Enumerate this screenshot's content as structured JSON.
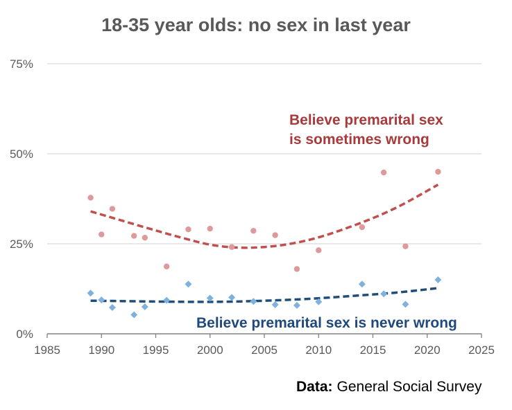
{
  "colors": {
    "sometimes_points": "#dd9a9a",
    "sometimes_trend": "#c0504d",
    "sometimes_label": "#a83a3c",
    "never_points": "#7fb1dd",
    "never_trend": "#1f4e79",
    "never_label": "#1f497d",
    "grid": "#d9d9d9",
    "axis": "#808080",
    "text": "#595959"
  },
  "chart_data": {
    "type": "scatter",
    "title": "18-35 year olds: no sex in last year",
    "xlabel": "",
    "ylabel": "",
    "xlim": [
      1985,
      2025
    ],
    "ylim": [
      0,
      75
    ],
    "x_ticks": [
      1985,
      1990,
      1995,
      2000,
      2005,
      2010,
      2015,
      2020,
      2025
    ],
    "x_tick_labels": [
      "1985",
      "1990",
      "1995",
      "2000",
      "2005",
      "2010",
      "2015",
      "2020",
      "2025"
    ],
    "y_ticks": [
      0,
      25,
      50,
      75
    ],
    "y_tick_labels": [
      "0%",
      "25%",
      "50%",
      "75%"
    ],
    "grid": "horizontal",
    "series": [
      {
        "name": "Believe premarital sex is sometimes wrong",
        "label_lines": [
          "Believe premarital sex",
          "is sometimes wrong"
        ],
        "marker": "circle",
        "x": [
          1989,
          1990,
          1991,
          1993,
          1994,
          1996,
          1998,
          2000,
          2002,
          2004,
          2006,
          2008,
          2010,
          2014,
          2016,
          2018,
          2021
        ],
        "y": [
          37.8,
          27.6,
          34.7,
          27.2,
          26.7,
          18.7,
          29.0,
          29.2,
          24.1,
          28.6,
          27.4,
          18.0,
          23.2,
          29.6,
          44.8,
          24.3,
          45.0
        ],
        "trend": {
          "type": "polynomial",
          "order": 2,
          "x_range": [
            1989,
            2021
          ],
          "points": [
            [
              1989,
              34.0
            ],
            [
              1997,
              27.0
            ],
            [
              2001,
              24.3
            ],
            [
              2005,
              24.1
            ],
            [
              2009,
              26.0
            ],
            [
              2013,
              29.8
            ],
            [
              2017,
              34.8
            ],
            [
              2021,
              41.4
            ]
          ]
        }
      },
      {
        "name": "Believe premarital sex is never wrong",
        "label_lines": [
          "Believe premarital sex is never wrong"
        ],
        "marker": "diamond",
        "x": [
          1989,
          1990,
          1991,
          1993,
          1994,
          1996,
          1998,
          2000,
          2002,
          2004,
          2006,
          2008,
          2010,
          2014,
          2016,
          2018,
          2021
        ],
        "y": [
          11.3,
          9.4,
          7.3,
          5.3,
          7.5,
          9.3,
          13.8,
          9.9,
          10.1,
          9.0,
          8.1,
          7.9,
          8.9,
          13.8,
          11.1,
          8.2,
          15.0
        ],
        "trend": {
          "type": "polynomial",
          "order": 2,
          "x_range": [
            1989,
            2021
          ],
          "points": [
            [
              1989,
              9.2
            ],
            [
              1997,
              8.9
            ],
            [
              2001,
              8.9
            ],
            [
              2005,
              9.2
            ],
            [
              2009,
              9.7
            ],
            [
              2013,
              10.5
            ],
            [
              2017,
              11.4
            ],
            [
              2021,
              12.7
            ]
          ]
        }
      }
    ]
  },
  "source": {
    "label": "Data:",
    "text": "General Social Survey"
  }
}
